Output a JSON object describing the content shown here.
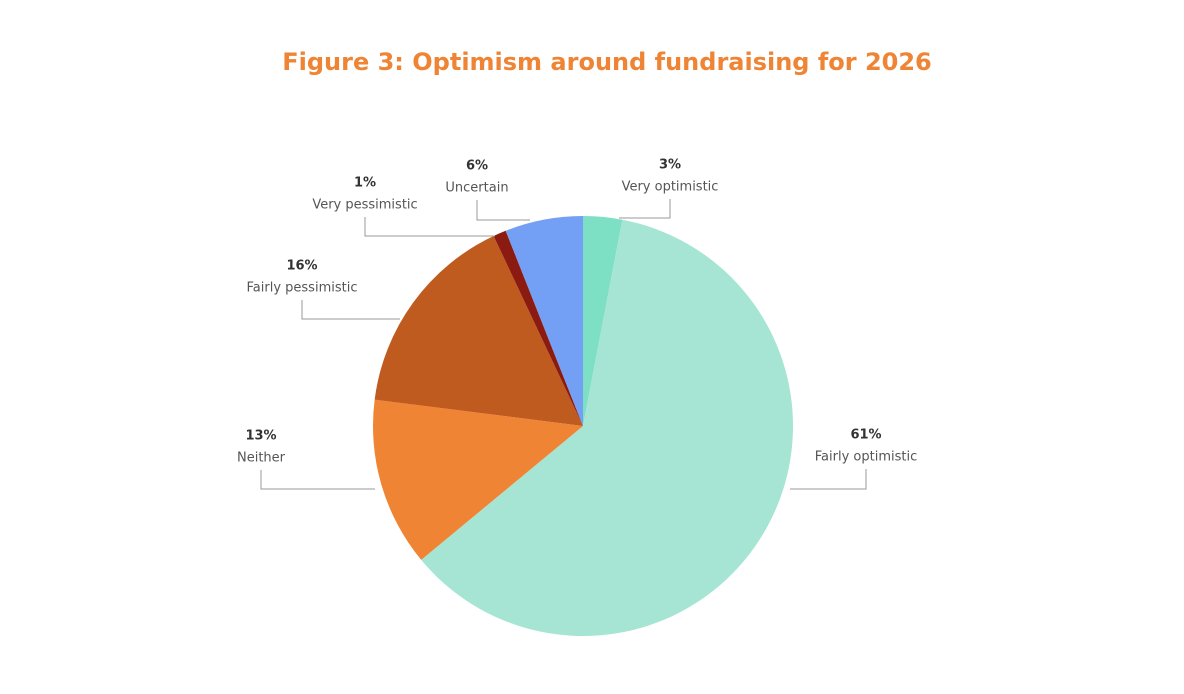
{
  "chart_data": {
    "type": "pie",
    "title": "Figure 3: Optimism around fundraising for 2026",
    "title_color": "#ee8434",
    "categories": [
      "Very optimistic",
      "Fairly optimistic",
      "Neither",
      "Fairly pessimistic",
      "Very pessimistic",
      "Uncertain"
    ],
    "values": [
      3,
      61,
      13,
      16,
      1,
      6
    ],
    "value_labels": [
      "3%",
      "61%",
      "13%",
      "16%",
      "1%",
      "6%"
    ],
    "colors": [
      "#7ddfc3",
      "#a6e5d3",
      "#ee8434",
      "#c05b20",
      "#8b1a10",
      "#739ff5"
    ]
  }
}
